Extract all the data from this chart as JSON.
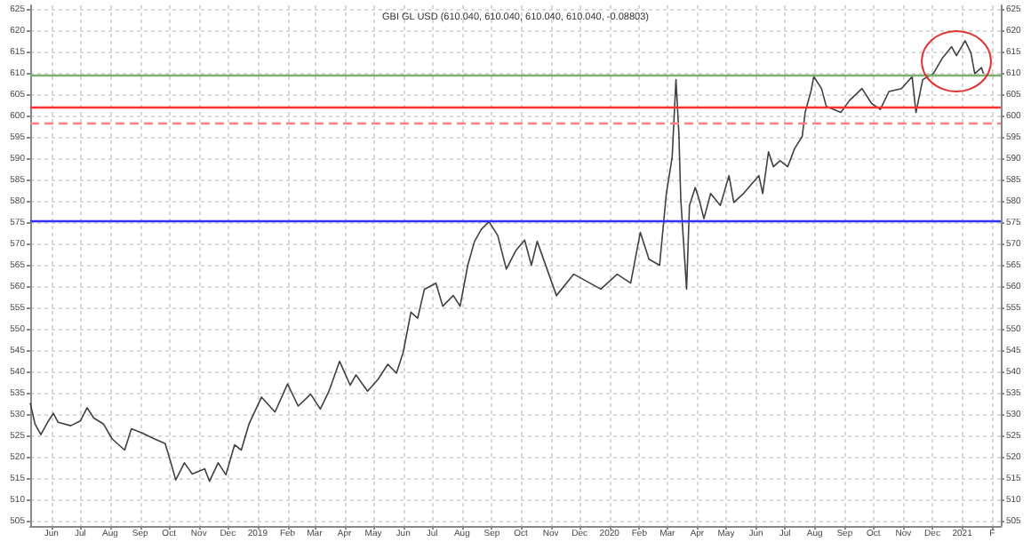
{
  "chart_data": {
    "type": "line",
    "title": "GBI GL USD (610.040, 610.040, 610.040, 610.040, -0.08803)",
    "x": [
      "2018-05-10",
      "2018-05-15",
      "2018-05-21",
      "2018-05-28",
      "2018-06-03",
      "2018-06-08",
      "2018-06-21",
      "2018-07-01",
      "2018-07-08",
      "2018-07-15",
      "2018-07-25",
      "2018-08-03",
      "2018-08-16",
      "2018-08-23",
      "2018-09-03",
      "2018-09-16",
      "2018-09-27",
      "2018-10-03",
      "2018-10-08",
      "2018-10-17",
      "2018-10-25",
      "2018-11-07",
      "2018-11-12",
      "2018-11-21",
      "2018-11-29",
      "2018-12-08",
      "2018-12-15",
      "2018-12-23",
      "2019-01-05",
      "2019-01-19",
      "2019-02-01",
      "2019-02-12",
      "2019-02-25",
      "2019-03-07",
      "2019-03-16",
      "2019-03-27",
      "2019-04-07",
      "2019-04-13",
      "2019-04-25",
      "2019-05-06",
      "2019-05-16",
      "2019-05-25",
      "2019-06-01",
      "2019-06-09",
      "2019-06-16",
      "2019-06-23",
      "2019-07-05",
      "2019-07-12",
      "2019-07-23",
      "2019-07-30",
      "2019-08-07",
      "2019-08-14",
      "2019-08-21",
      "2019-08-29",
      "2019-09-07",
      "2019-09-16",
      "2019-09-26",
      "2019-10-05",
      "2019-10-12",
      "2019-10-18",
      "2019-11-07",
      "2019-11-25",
      "2019-12-23",
      "2020-01-09",
      "2020-01-23",
      "2020-02-02",
      "2020-02-11",
      "2020-02-22",
      "2020-02-29",
      "2020-03-06",
      "2020-03-10",
      "2020-03-13",
      "2020-03-15",
      "2020-03-21",
      "2020-03-24",
      "2020-03-30",
      "2020-04-03",
      "2020-04-08",
      "2020-04-15",
      "2020-04-25",
      "2020-05-04",
      "2020-05-09",
      "2020-05-19",
      "2020-06-04",
      "2020-06-08",
      "2020-06-14",
      "2020-06-19",
      "2020-06-26",
      "2020-07-04",
      "2020-07-11",
      "2020-07-19",
      "2020-07-22",
      "2020-07-28",
      "2020-07-31",
      "2020-08-08",
      "2020-08-13",
      "2020-08-28",
      "2020-09-06",
      "2020-09-19",
      "2020-09-29",
      "2020-10-08",
      "2020-10-17",
      "2020-10-30",
      "2020-11-10",
      "2020-11-14",
      "2020-11-21",
      "2020-12-02",
      "2020-12-11",
      "2020-12-21",
      "2020-12-26",
      "2021-01-04",
      "2021-01-10",
      "2021-01-14",
      "2021-01-21",
      "2021-01-23"
    ],
    "series": [
      {
        "color": "#404040",
        "values": [
          532.8,
          527.9,
          525.4,
          528.3,
          530.4,
          528.3,
          527.5,
          528.6,
          531.7,
          529.3,
          527.9,
          524.4,
          521.8,
          526.8,
          525.8,
          524.4,
          523.3,
          518.8,
          514.8,
          518.8,
          516.2,
          517.4,
          514.5,
          518.8,
          516.0,
          523.0,
          521.8,
          527.9,
          534.2,
          530.7,
          537.3,
          532.1,
          534.9,
          531.4,
          535.6,
          542.6,
          537.0,
          539.4,
          535.6,
          538.4,
          541.9,
          539.8,
          544.7,
          554.1,
          552.7,
          559.5,
          560.9,
          555.5,
          558.0,
          555.5,
          565.1,
          570.7,
          573.5,
          575.3,
          572.1,
          564.2,
          568.6,
          571.0,
          565.1,
          570.7,
          558.0,
          563.0,
          559.5,
          563.0,
          560.9,
          572.8,
          566.5,
          565.1,
          581.9,
          590.3,
          608.6,
          596.0,
          580.5,
          559.5,
          579.1,
          583.3,
          580.5,
          576.0,
          581.9,
          579.1,
          586.1,
          579.8,
          581.9,
          586.1,
          581.9,
          591.7,
          588.2,
          589.6,
          588.2,
          592.4,
          595.3,
          600.9,
          605.8,
          609.3,
          606.5,
          602.3,
          600.9,
          603.7,
          606.5,
          603.0,
          601.6,
          605.8,
          606.5,
          609.3,
          600.9,
          608.6,
          610.0,
          613.5,
          616.3,
          614.2,
          617.7,
          614.9,
          610.0,
          611.4,
          610.04
        ]
      }
    ],
    "xlim": [
      "2018-05-10",
      "2021-02-10"
    ],
    "xticks": [
      {
        "value": "2018-06",
        "label": "Jun"
      },
      {
        "value": "2018-07",
        "label": "Jul"
      },
      {
        "value": "2018-08",
        "label": "Aug"
      },
      {
        "value": "2018-09",
        "label": "Sep"
      },
      {
        "value": "2018-10",
        "label": "Oct"
      },
      {
        "value": "2018-11",
        "label": "Nov"
      },
      {
        "value": "2018-12",
        "label": "Dec"
      },
      {
        "value": "2019-01",
        "label": "2019"
      },
      {
        "value": "2019-02",
        "label": "Feb"
      },
      {
        "value": "2019-03",
        "label": "Mar"
      },
      {
        "value": "2019-04",
        "label": "Apr"
      },
      {
        "value": "2019-05",
        "label": "May"
      },
      {
        "value": "2019-06",
        "label": "Jun"
      },
      {
        "value": "2019-07",
        "label": "Jul"
      },
      {
        "value": "2019-08",
        "label": "Aug"
      },
      {
        "value": "2019-09",
        "label": "Sep"
      },
      {
        "value": "2019-10",
        "label": "Oct"
      },
      {
        "value": "2019-11",
        "label": "Nov"
      },
      {
        "value": "2019-12",
        "label": "Dec"
      },
      {
        "value": "2020-01",
        "label": "2020"
      },
      {
        "value": "2020-02",
        "label": "Feb"
      },
      {
        "value": "2020-03",
        "label": "Mar"
      },
      {
        "value": "2020-04",
        "label": "Apr"
      },
      {
        "value": "2020-05",
        "label": "May"
      },
      {
        "value": "2020-06",
        "label": "Jun"
      },
      {
        "value": "2020-07",
        "label": "Jul"
      },
      {
        "value": "2020-08",
        "label": "Aug"
      },
      {
        "value": "2020-09",
        "label": "Sep"
      },
      {
        "value": "2020-10",
        "label": "Oct"
      },
      {
        "value": "2020-11",
        "label": "Nov"
      },
      {
        "value": "2020-12",
        "label": "Dec"
      },
      {
        "value": "2021-01",
        "label": "2021"
      },
      {
        "value": "2021-02",
        "label": "F"
      }
    ],
    "ylim": [
      504,
      626
    ],
    "yticks": [
      505,
      510,
      515,
      520,
      525,
      530,
      535,
      540,
      545,
      550,
      555,
      560,
      565,
      570,
      575,
      580,
      585,
      590,
      595,
      600,
      605,
      610,
      615,
      620,
      625
    ],
    "y2lim": [
      504,
      626
    ],
    "y2ticks": [
      505,
      510,
      515,
      520,
      525,
      530,
      535,
      540,
      545,
      550,
      555,
      560,
      565,
      570,
      575,
      580,
      585,
      590,
      595,
      600,
      605,
      610,
      615,
      620,
      625
    ],
    "ref_lines": [
      {
        "axis": "y",
        "value": 609.5,
        "color": "#7fae72"
      },
      {
        "axis": "y",
        "value": 602,
        "color": "#ff3030"
      },
      {
        "axis": "y",
        "value": 598.5,
        "color": "#ff8080",
        "line_style": "dashed"
      },
      {
        "axis": "y",
        "value": 575.5,
        "color": "#3030ff"
      }
    ],
    "grid": true,
    "marker": "none"
  }
}
